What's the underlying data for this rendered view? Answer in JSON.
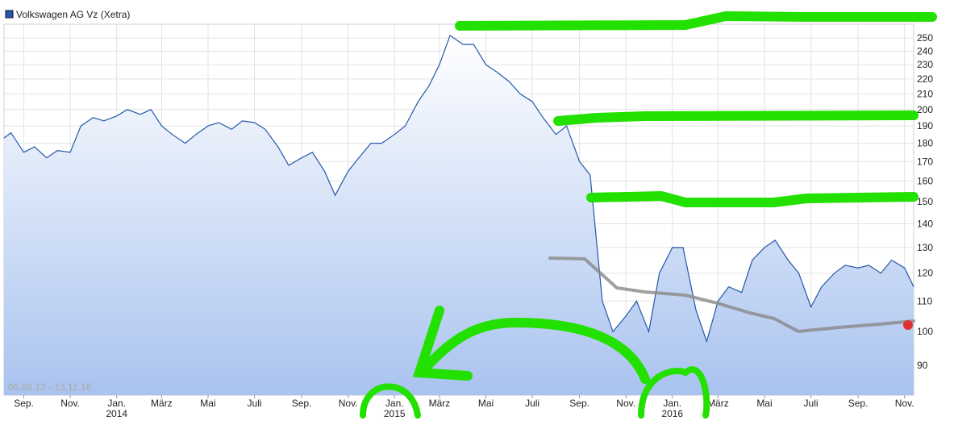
{
  "chart_data": {
    "type": "area",
    "log_scale": true,
    "grid": true,
    "legend": "top-left",
    "annotations": [
      "06.08.13 - 13.11.16"
    ],
    "xlim": [
      "2013-08-06",
      "2016-11-13"
    ],
    "ylim": [
      82,
      261
    ],
    "yticks": [
      90,
      100,
      110,
      120,
      130,
      140,
      150,
      160,
      170,
      180,
      190,
      200,
      210,
      220,
      230,
      240,
      250
    ],
    "xticks": [
      {
        "value": "2013-09-01",
        "label": "Sep."
      },
      {
        "value": "2013-11-01",
        "label": "Nov."
      },
      {
        "value": "2014-01-01",
        "label": "Jan.",
        "year": "2014"
      },
      {
        "value": "2014-03-01",
        "label": "März"
      },
      {
        "value": "2014-05-01",
        "label": "Mai"
      },
      {
        "value": "2014-07-01",
        "label": "Juli"
      },
      {
        "value": "2014-09-01",
        "label": "Sep."
      },
      {
        "value": "2014-11-01",
        "label": "Nov."
      },
      {
        "value": "2015-01-01",
        "label": "Jan.",
        "year": "2015"
      },
      {
        "value": "2015-03-01",
        "label": "März"
      },
      {
        "value": "2015-05-01",
        "label": "Mai"
      },
      {
        "value": "2015-07-01",
        "label": "Juli"
      },
      {
        "value": "2015-09-01",
        "label": "Sep."
      },
      {
        "value": "2015-11-01",
        "label": "Nov."
      },
      {
        "value": "2016-01-01",
        "label": "Jan.",
        "year": "2016"
      },
      {
        "value": "2016-03-01",
        "label": "März"
      },
      {
        "value": "2016-05-01",
        "label": "Mai"
      },
      {
        "value": "2016-07-01",
        "label": "Juli"
      },
      {
        "value": "2016-09-01",
        "label": "Sep."
      },
      {
        "value": "2016-11-01",
        "label": "Nov."
      }
    ],
    "x": [
      "2013-08-06",
      "2013-08-15",
      "2013-09-01",
      "2013-09-15",
      "2013-10-01",
      "2013-10-15",
      "2013-11-01",
      "2013-11-15",
      "2013-12-01",
      "2013-12-15",
      "2014-01-01",
      "2014-01-15",
      "2014-02-01",
      "2014-02-15",
      "2014-03-01",
      "2014-03-15",
      "2014-04-01",
      "2014-04-15",
      "2014-05-01",
      "2014-05-15",
      "2014-06-01",
      "2014-06-15",
      "2014-07-01",
      "2014-07-15",
      "2014-08-01",
      "2014-08-15",
      "2014-09-01",
      "2014-09-15",
      "2014-10-01",
      "2014-10-15",
      "2014-11-01",
      "2014-11-15",
      "2014-12-01",
      "2014-12-15",
      "2015-01-01",
      "2015-01-15",
      "2015-02-01",
      "2015-02-15",
      "2015-03-01",
      "2015-03-15",
      "2015-04-01",
      "2015-04-15",
      "2015-05-01",
      "2015-05-15",
      "2015-06-01",
      "2015-06-15",
      "2015-07-01",
      "2015-07-15",
      "2015-08-01",
      "2015-08-15",
      "2015-09-01",
      "2015-09-15",
      "2015-10-01",
      "2015-10-15",
      "2015-11-01",
      "2015-11-15",
      "2015-12-01",
      "2015-12-15",
      "2016-01-01",
      "2016-01-15",
      "2016-02-01",
      "2016-02-15",
      "2016-03-01",
      "2016-03-15",
      "2016-04-01",
      "2016-04-15",
      "2016-05-01",
      "2016-05-15",
      "2016-06-01",
      "2016-06-15",
      "2016-07-01",
      "2016-07-15",
      "2016-08-01",
      "2016-08-15",
      "2016-09-01",
      "2016-09-15",
      "2016-10-01",
      "2016-10-15",
      "2016-11-01",
      "2016-11-13"
    ],
    "series": [
      {
        "name": "Volkswagen AG Vz (Xetra)",
        "color": "#2458a8",
        "values": [
          183,
          186,
          175,
          178,
          172,
          176,
          175,
          190,
          195,
          193,
          196,
          200,
          197,
          200,
          190,
          185,
          180,
          185,
          190,
          192,
          188,
          193,
          192,
          188,
          178,
          168,
          172,
          175,
          165,
          153,
          165,
          172,
          180,
          180,
          185,
          190,
          205,
          215,
          230,
          252,
          245,
          245,
          230,
          225,
          218,
          210,
          205,
          195,
          185,
          190,
          170,
          163,
          110,
          100,
          105,
          110,
          100,
          120,
          130,
          130,
          107,
          97,
          110,
          115,
          113,
          125,
          130,
          133,
          125,
          120,
          108,
          115,
          120,
          123,
          122,
          123,
          120,
          125,
          122,
          115
        ]
      }
    ]
  }
}
